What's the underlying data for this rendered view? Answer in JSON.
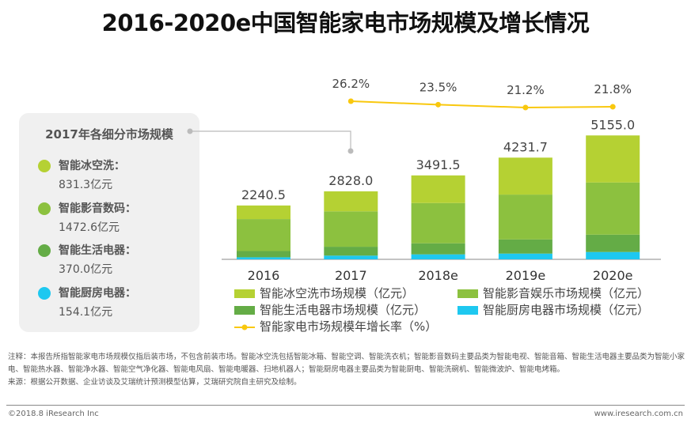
{
  "title": "2016-2020e中国智能家电市场规模及增长情况",
  "panel": {
    "title": "2017年各细分市场规模",
    "items": [
      {
        "name": "智能冰空洗：",
        "value": "831.3亿元",
        "color": "#b5d133"
      },
      {
        "name": "智能影音数码：",
        "value": "1472.6亿元",
        "color": "#8cc13f"
      },
      {
        "name": "智能生活电器：",
        "value": "370.0亿元",
        "color": "#64ac46"
      },
      {
        "name": "智能厨房电器：",
        "value": "154.1亿元",
        "color": "#1ec8f0"
      }
    ]
  },
  "chart_data": {
    "type": "bar",
    "stacked": true,
    "categories": [
      "2016",
      "2017",
      "2018e",
      "2019e",
      "2020e"
    ],
    "totals": [
      "2240.5",
      "2828.0",
      "3491.5",
      "4231.7",
      "5155.0"
    ],
    "series": [
      {
        "name": "智能厨房电器市场规模（亿元）",
        "color": "#1ec8f0",
        "values": [
          85,
          154.1,
          207,
          239,
          305
        ]
      },
      {
        "name": "智能生活电器市场规模（亿元）",
        "color": "#64ac46",
        "values": [
          261,
          370.0,
          460,
          589,
          721
        ]
      },
      {
        "name": "智能影音娱乐市场规模（亿元）",
        "color": "#8cc13f",
        "values": [
          1329,
          1472.6,
          1675,
          1866,
          2172
        ]
      },
      {
        "name": "智能冰空洗市场规模（亿元）",
        "color": "#b5d133",
        "values": [
          565.5,
          831.3,
          1149.5,
          1537.7,
          1957
        ]
      }
    ],
    "growth": {
      "name": "智能家电市场规模年增长率（%）",
      "color": "#f9c80e",
      "categories": [
        "2017",
        "2018e",
        "2019e",
        "2020e"
      ],
      "values": [
        26.2,
        23.5,
        21.2,
        21.8
      ],
      "labels": [
        "26.2%",
        "23.5%",
        "21.2%",
        "21.8%"
      ]
    },
    "legend": "bottom"
  },
  "notes": {
    "note": "注释：本报告所指智能家电市场规模仅指后装市场，不包含前装市场。智能冰空洗包括智能冰箱、智能空调、智能洗衣机；智能影音数码主要品类为智能电视、智能音箱、智能生活电器主要品类为智能小家电、智能热水器、智能净水器、智能空气净化器、智能电风扇、智能电暖器、扫地机器人；智能厨房电器主要品类为智能厨电、智能洗碗机、智能微波炉、智能电烤箱。",
    "source": "来源：根据公开数据、企业访谈及艾瑞统计预测模型估算，艾瑞研究院自主研究及绘制。"
  },
  "footer": {
    "copyright": "©2018.8 iResearch Inc",
    "website": "www.iresearch.com.cn"
  }
}
